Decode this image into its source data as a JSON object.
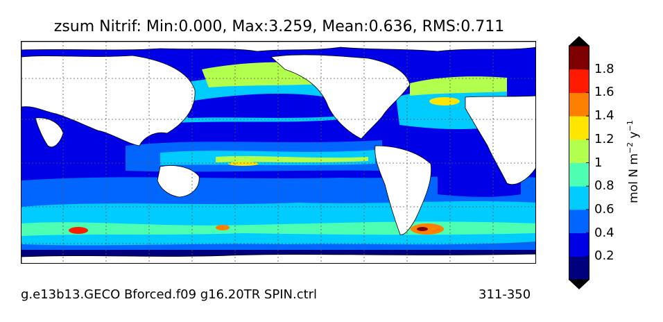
{
  "title": {
    "variable": "zsum Nitrif",
    "min_label": "Min:",
    "min": "0.000",
    "max_label": "Max:",
    "max": "3.259",
    "mean_label": "Mean:",
    "mean": "0.636",
    "rms_label": "RMS:",
    "rms": "0.711",
    "full": "zsum Nitrif: Min:0.000, Max:3.259, Mean:0.636, RMS:0.711"
  },
  "footer": {
    "run": "g.e13b13.GECO Bforced.f09 g16.20TR SPIN.ctrl",
    "years": "311-350"
  },
  "colorbar": {
    "unit_label": "mol N m",
    "unit_exp1": "−2",
    "unit_mid": " y",
    "unit_exp2": "−1",
    "ticks": [
      "0.2",
      "0.4",
      "0.6",
      "0.8",
      "1",
      "1.2",
      "1.4",
      "1.6",
      "1.8"
    ],
    "levels": [
      0,
      0.2,
      0.4,
      0.6,
      0.8,
      1.0,
      1.2,
      1.4,
      1.6,
      1.8,
      2.0
    ],
    "colors": [
      "#00007f",
      "#0000e6",
      "#0066ff",
      "#00ccff",
      "#4dffb3",
      "#b3ff4d",
      "#ffe600",
      "#ff8000",
      "#ff1a00",
      "#7f0000"
    ],
    "extend": "both",
    "under_color": "#000000",
    "over_color": "#000000"
  },
  "map": {
    "land_color": "#ffffff",
    "coastline_color": "#000000",
    "gridlines": "dotted",
    "ocean_shading": "filled contours"
  }
}
